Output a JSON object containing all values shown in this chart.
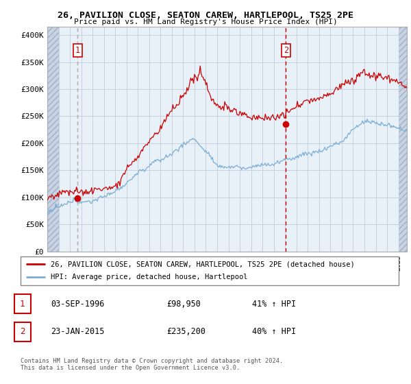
{
  "title": "26, PAVILION CLOSE, SEATON CAREW, HARTLEPOOL, TS25 2PE",
  "subtitle": "Price paid vs. HM Land Registry's House Price Index (HPI)",
  "ylabel_ticks": [
    "£0",
    "£50K",
    "£100K",
    "£150K",
    "£200K",
    "£250K",
    "£300K",
    "£350K",
    "£400K"
  ],
  "ytick_values": [
    0,
    50000,
    100000,
    150000,
    200000,
    250000,
    300000,
    350000,
    400000
  ],
  "ylim": [
    0,
    415000
  ],
  "xlim_start": 1994.0,
  "xlim_end": 2025.75,
  "sale1_x": 1996.67,
  "sale1_price": 98950,
  "sale1_label": "1",
  "sale2_x": 2015.06,
  "sale2_price": 235200,
  "sale2_label": "2",
  "legend_red": "26, PAVILION CLOSE, SEATON CAREW, HARTLEPOOL, TS25 2PE (detached house)",
  "legend_blue": "HPI: Average price, detached house, Hartlepool",
  "table_rows": [
    {
      "num": "1",
      "date": "03-SEP-1996",
      "price": "£98,950",
      "change": "41% ↑ HPI"
    },
    {
      "num": "2",
      "date": "23-JAN-2015",
      "price": "£235,200",
      "change": "40% ↑ HPI"
    }
  ],
  "footer": "Contains HM Land Registry data © Crown copyright and database right 2024.\nThis data is licensed under the Open Government Licence v3.0.",
  "red_color": "#cc0000",
  "blue_color": "#7aaed6",
  "vline1_color": "#aaaaaa",
  "vline2_color": "#cc0000",
  "chart_bg": "#e8f0f8",
  "hatch_color": "#c8d4e4",
  "grid_color": "#c0ccd8"
}
